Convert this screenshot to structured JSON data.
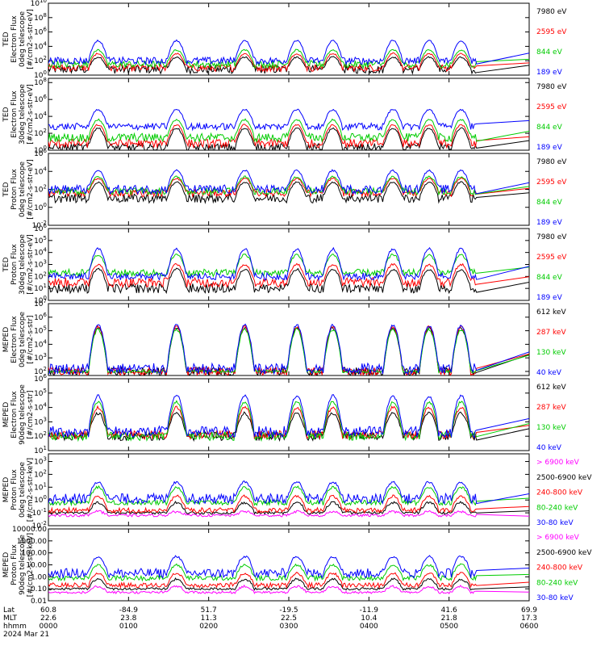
{
  "chart_data": {
    "type": "line",
    "x_axis": {
      "row_labels": [
        "Lat",
        "MLT",
        "hhmm",
        "2024 Mar 21"
      ],
      "columns": [
        {
          "lat": "60.8",
          "mlt": "22.6",
          "hhmm": "0000"
        },
        {
          "lat": "-84.9",
          "mlt": "23.8",
          "hhmm": "0100"
        },
        {
          "lat": "51.7",
          "mlt": "11.3",
          "hhmm": "0200"
        },
        {
          "lat": "-19.5",
          "mlt": "22.5",
          "hhmm": "0300"
        },
        {
          "lat": "-11.9",
          "mlt": "10.4",
          "hhmm": "0400"
        },
        {
          "lat": "41.6",
          "mlt": "21.8",
          "hhmm": "0500"
        },
        {
          "lat": "69.9",
          "mlt": "17.3",
          "hhmm": "0600"
        }
      ],
      "xlim_hours": [
        0,
        6
      ]
    },
    "panels": [
      {
        "ylabel": [
          "TED",
          "Electron Flux",
          "0deg telescope",
          "[#/cm2-s-str-eV]"
        ],
        "yscale": "log",
        "yticks": [
          {
            "exp": "0",
            "v": 0
          },
          {
            "exp": "2",
            "v": 2
          },
          {
            "exp": "4",
            "v": 4
          },
          {
            "exp": "6",
            "v": 6
          },
          {
            "exp": "8",
            "v": 8
          },
          {
            "exp": "10",
            "v": 10
          }
        ],
        "ylim_log10": [
          0,
          10
        ],
        "series": [
          {
            "name": "7980 eV",
            "color": "#000000",
            "base": 0.8,
            "peak": 2.5,
            "noise": 0.6
          },
          {
            "name": "2595 eV",
            "color": "#ff0000",
            "base": 1.0,
            "peak": 3.0,
            "noise": 0.5
          },
          {
            "name": "844 eV",
            "color": "#00cc00",
            "base": 1.5,
            "peak": 3.5,
            "noise": 0.5
          },
          {
            "name": "189 eV",
            "color": "#0000ff",
            "base": 2.0,
            "peak": 4.8,
            "noise": 0.5
          }
        ]
      },
      {
        "ylabel": [
          "TED",
          "Electron Flux",
          "30deg telescope",
          "[#/cm2-s-str-eV]"
        ],
        "yscale": "log",
        "yticks": [
          {
            "exp": "0",
            "v": 0
          },
          {
            "exp": "2",
            "v": 2
          },
          {
            "exp": "4",
            "v": 4
          },
          {
            "exp": "6",
            "v": 6
          },
          {
            "exp": "8",
            "v": 8
          }
        ],
        "ylim_log10": [
          0,
          8.5
        ],
        "series": [
          {
            "name": "7980 eV",
            "color": "#000000",
            "base": 0.3,
            "peak": 2.6,
            "noise": 0.5
          },
          {
            "name": "2595 eV",
            "color": "#ff0000",
            "base": 0.8,
            "peak": 3.0,
            "noise": 0.5
          },
          {
            "name": "844 eV",
            "color": "#00cc00",
            "base": 1.5,
            "peak": 3.6,
            "noise": 0.5
          },
          {
            "name": "189 eV",
            "color": "#0000ff",
            "base": 2.8,
            "peak": 4.8,
            "noise": 0.4
          }
        ]
      },
      {
        "ylabel": [
          "TED",
          "Proton Flux",
          "0deg telescope",
          "[#/cm2-s-str-eV]"
        ],
        "yscale": "log",
        "yticks": [
          {
            "exp": "-2",
            "v": -2
          },
          {
            "exp": "0",
            "v": 0
          },
          {
            "exp": "2",
            "v": 2
          },
          {
            "exp": "4",
            "v": 4
          },
          {
            "exp": "6",
            "v": 6
          }
        ],
        "ylim_log10": [
          -2,
          6
        ],
        "series": [
          {
            "name": "7980 eV",
            "color": "#000000",
            "base": 1.0,
            "peak": 2.8,
            "noise": 0.5
          },
          {
            "name": "2595 eV",
            "color": "#ff0000",
            "base": 1.6,
            "peak": 3.2,
            "noise": 0.4
          },
          {
            "name": "844 eV",
            "color": "#00cc00",
            "base": 1.8,
            "peak": 3.4,
            "noise": 0.4
          },
          {
            "name": "189 eV",
            "color": "#0000ff",
            "base": 2.0,
            "peak": 4.1,
            "noise": 0.5
          }
        ]
      },
      {
        "ylabel": [
          "TED",
          "Proton Flux",
          "30deg telescope",
          "[#/cm2-s-str-eV]"
        ],
        "yscale": "log",
        "yticks": [
          {
            "exp": "0",
            "v": 0
          },
          {
            "exp": "1",
            "v": 1
          },
          {
            "exp": "2",
            "v": 2
          },
          {
            "exp": "3",
            "v": 3
          },
          {
            "exp": "4",
            "v": 4
          },
          {
            "exp": "5",
            "v": 5
          },
          {
            "exp": "6",
            "v": 6
          }
        ],
        "ylim_log10": [
          0,
          6
        ],
        "series": [
          {
            "name": "7980 eV",
            "color": "#000000",
            "base": 1.0,
            "peak": 2.6,
            "noise": 0.4
          },
          {
            "name": "2595 eV",
            "color": "#ff0000",
            "base": 1.5,
            "peak": 3.0,
            "noise": 0.4
          },
          {
            "name": "844 eV",
            "color": "#00cc00",
            "base": 2.3,
            "peak": 3.8,
            "noise": 0.3
          },
          {
            "name": "189 eV",
            "color": "#0000ff",
            "base": 2.0,
            "peak": 4.3,
            "noise": 0.3
          }
        ]
      },
      {
        "ylabel": [
          "MEPED",
          "Electron Flux",
          "0deg telescope",
          "[#/cm2-s-str]"
        ],
        "yscale": "log",
        "yticks": [
          {
            "exp": "2",
            "v": 2
          },
          {
            "exp": "3",
            "v": 3
          },
          {
            "exp": "4",
            "v": 4
          },
          {
            "exp": "5",
            "v": 5
          },
          {
            "exp": "6",
            "v": 6
          },
          {
            "exp": "7",
            "v": 7
          }
        ],
        "ylim_log10": [
          1.7,
          7
        ],
        "series": [
          {
            "name": "612 keV",
            "color": "#000000",
            "base": 2.0,
            "peak": 5.2,
            "noise": 0.3
          },
          {
            "name": "287 keV",
            "color": "#ff0000",
            "base": 2.0,
            "peak": 5.3,
            "noise": 0.3
          },
          {
            "name": "130 keV",
            "color": "#00cc00",
            "base": 2.0,
            "peak": 5.1,
            "noise": 0.1
          },
          {
            "name": "40 keV",
            "color": "#0000ff",
            "base": 2.2,
            "peak": 5.4,
            "noise": 0.4
          }
        ]
      },
      {
        "ylabel": [
          "MEPED",
          "Electron Flux",
          "90deg telescope",
          "[#/cm2-s-str]"
        ],
        "yscale": "log",
        "yticks": [
          {
            "exp": "1",
            "v": 1
          },
          {
            "exp": "2",
            "v": 2
          },
          {
            "exp": "3",
            "v": 3
          },
          {
            "exp": "4",
            "v": 4
          },
          {
            "exp": "5",
            "v": 5
          },
          {
            "exp": "6",
            "v": 6
          }
        ],
        "ylim_log10": [
          1,
          6
        ],
        "series": [
          {
            "name": "612 keV",
            "color": "#000000",
            "base": 2.0,
            "peak": 3.6,
            "noise": 0.3
          },
          {
            "name": "287 keV",
            "color": "#ff0000",
            "base": 2.1,
            "peak": 4.0,
            "noise": 0.3
          },
          {
            "name": "130 keV",
            "color": "#00cc00",
            "base": 2.0,
            "peak": 4.4,
            "noise": 0.3
          },
          {
            "name": "40 keV",
            "color": "#0000ff",
            "base": 2.3,
            "peak": 4.8,
            "noise": 0.4
          }
        ]
      },
      {
        "ylabel": [
          "MEPED",
          "Proton Flux",
          "0deg telescope",
          "[#/cm2-s-str-keV]"
        ],
        "yscale": "log",
        "yticks": [
          {
            "exp": "-2",
            "v": -2
          },
          {
            "exp": "-1",
            "v": -1
          },
          {
            "exp": "0",
            "v": 0
          },
          {
            "exp": "1",
            "v": 1
          },
          {
            "exp": "2",
            "v": 2
          },
          {
            "exp": "3",
            "v": 3
          }
        ],
        "ylim_log10": [
          -2,
          3.6
        ],
        "series": [
          {
            "name": "> 6900 keV",
            "color": "#ff00ff",
            "base": -1.2,
            "peak": -0.9,
            "noise": 0.1
          },
          {
            "name": "2500-6900 keV",
            "color": "#000000",
            "base": -1.0,
            "peak": -0.2,
            "noise": 0.1
          },
          {
            "name": "240-800 keV",
            "color": "#ff0000",
            "base": -0.8,
            "peak": 0.3,
            "noise": 0.2
          },
          {
            "name": "80-240 keV",
            "color": "#00cc00",
            "base": -0.2,
            "peak": 1.0,
            "noise": 0.2
          },
          {
            "name": "30-80 keV",
            "color": "#0000ff",
            "base": 0.1,
            "peak": 1.4,
            "noise": 0.4
          }
        ]
      },
      {
        "ylabel": [
          "MEPED",
          "Proton Flux",
          "90deg telescope",
          "[#/cm2-s-str-keV]"
        ],
        "yscale": "log",
        "yticks": [
          {
            "exp": "0.01",
            "v": -2,
            "plain": true
          },
          {
            "exp": "0.10",
            "v": -1,
            "plain": true
          },
          {
            "exp": "1.00",
            "v": 0,
            "plain": true
          },
          {
            "exp": "10.00",
            "v": 1,
            "plain": true
          },
          {
            "exp": "100.00",
            "v": 2,
            "plain": true
          },
          {
            "exp": "1000.00",
            "v": 3,
            "plain": true
          },
          {
            "exp": "10000.00",
            "v": 4,
            "plain": true
          }
        ],
        "ylim_log10": [
          -2,
          4
        ],
        "series": [
          {
            "name": "> 6900 keV",
            "color": "#ff00ff",
            "base": -1.3,
            "peak": -0.8,
            "noise": 0.1
          },
          {
            "name": "2500-6900 keV",
            "color": "#000000",
            "base": -1.0,
            "peak": -0.2,
            "noise": 0.1
          },
          {
            "name": "240-800 keV",
            "color": "#ff0000",
            "base": -0.7,
            "peak": 0.3,
            "noise": 0.2
          },
          {
            "name": "80-240 keV",
            "color": "#00cc00",
            "base": -0.1,
            "peak": 1.0,
            "noise": 0.2
          },
          {
            "name": "30-80 keV",
            "color": "#0000ff",
            "base": 0.3,
            "peak": 1.7,
            "noise": 0.4
          }
        ]
      }
    ],
    "passes_hours": [
      0.62,
      1.6,
      2.45,
      3.1,
      3.55,
      4.3,
      4.75,
      5.15
    ],
    "data_end_hour": 5.35
  }
}
